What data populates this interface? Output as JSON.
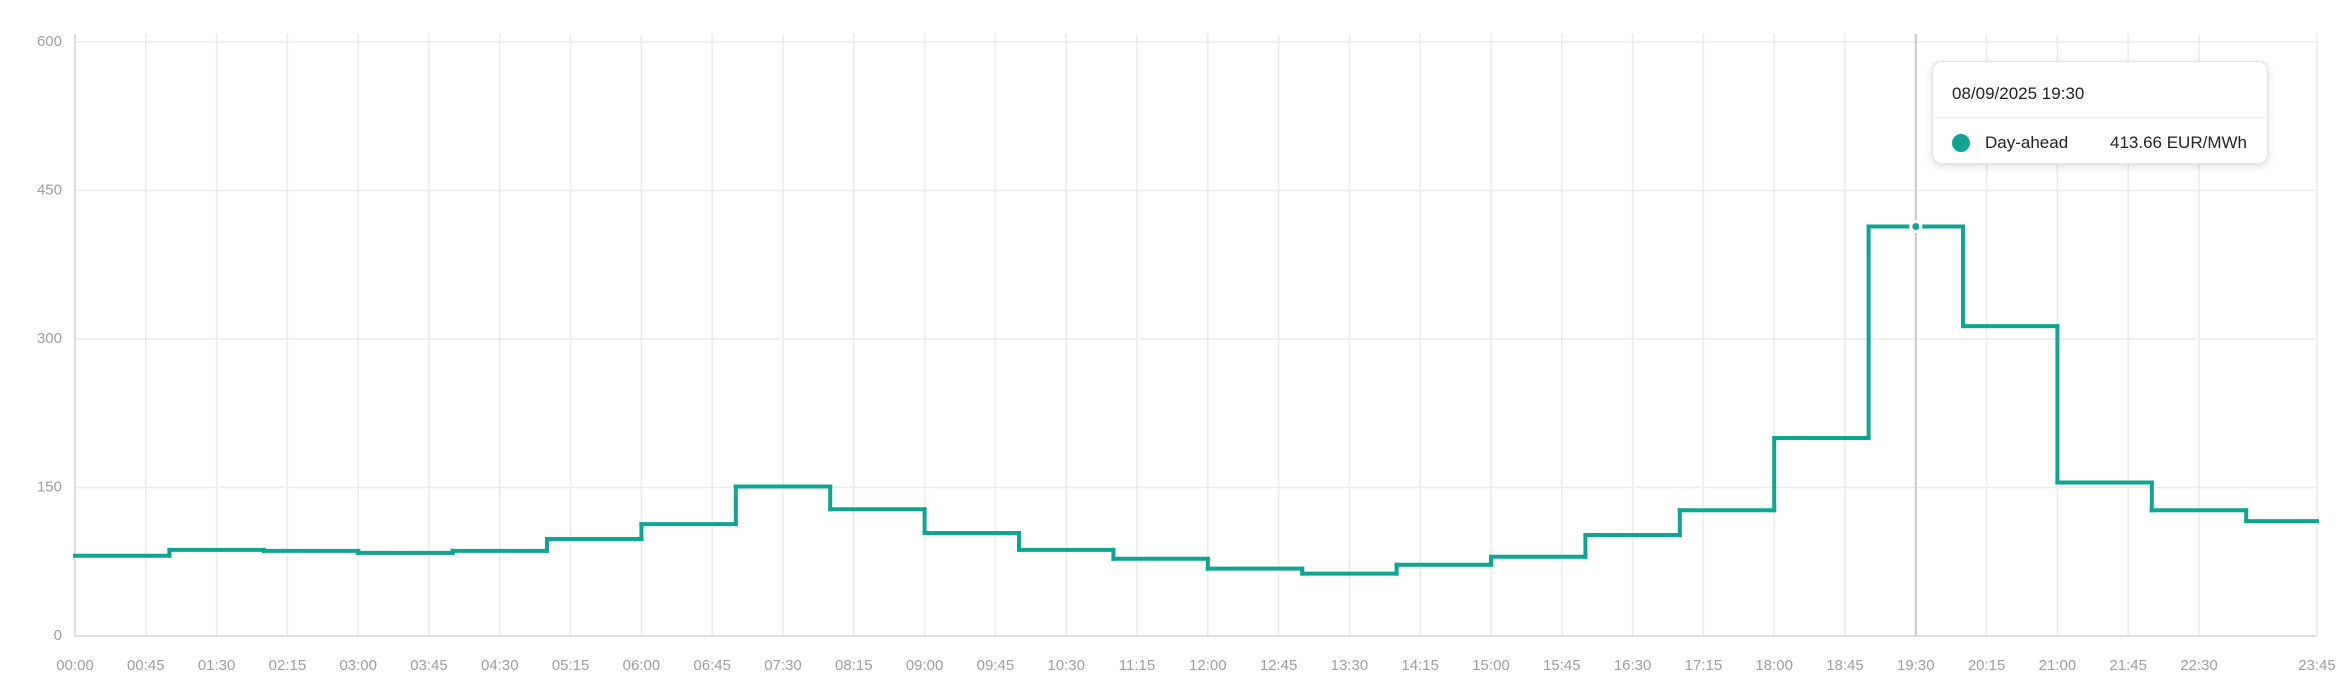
{
  "chart_data": {
    "type": "step",
    "x": [
      0,
      60,
      120,
      180,
      240,
      300,
      360,
      420,
      480,
      540,
      600,
      660,
      720,
      780,
      840,
      900,
      960,
      1020,
      1080,
      1140,
      1200,
      1260,
      1320,
      1380
    ],
    "series": [
      {
        "name": "Day-ahead",
        "color": "#0fa592",
        "values": [
          81,
          87,
          86,
          84,
          86,
          98,
          113,
          151,
          128,
          104,
          87,
          78,
          68,
          63,
          72,
          80,
          102,
          127,
          200,
          413.66,
          313,
          155,
          127,
          116
        ]
      }
    ],
    "xlim": [
      0,
      1425
    ],
    "xticks": [
      {
        "value": 0,
        "label": "00:00"
      },
      {
        "value": 45,
        "label": "00:45"
      },
      {
        "value": 90,
        "label": "01:30"
      },
      {
        "value": 135,
        "label": "02:15"
      },
      {
        "value": 180,
        "label": "03:00"
      },
      {
        "value": 225,
        "label": "03:45"
      },
      {
        "value": 270,
        "label": "04:30"
      },
      {
        "value": 315,
        "label": "05:15"
      },
      {
        "value": 360,
        "label": "06:00"
      },
      {
        "value": 405,
        "label": "06:45"
      },
      {
        "value": 450,
        "label": "07:30"
      },
      {
        "value": 495,
        "label": "08:15"
      },
      {
        "value": 540,
        "label": "09:00"
      },
      {
        "value": 585,
        "label": "09:45"
      },
      {
        "value": 630,
        "label": "10:30"
      },
      {
        "value": 675,
        "label": "11:15"
      },
      {
        "value": 720,
        "label": "12:00"
      },
      {
        "value": 765,
        "label": "12:45"
      },
      {
        "value": 810,
        "label": "13:30"
      },
      {
        "value": 855,
        "label": "14:15"
      },
      {
        "value": 900,
        "label": "15:00"
      },
      {
        "value": 945,
        "label": "15:45"
      },
      {
        "value": 990,
        "label": "16:30"
      },
      {
        "value": 1035,
        "label": "17:15"
      },
      {
        "value": 1080,
        "label": "18:00"
      },
      {
        "value": 1125,
        "label": "18:45"
      },
      {
        "value": 1170,
        "label": "19:30"
      },
      {
        "value": 1215,
        "label": "20:15"
      },
      {
        "value": 1260,
        "label": "21:00"
      },
      {
        "value": 1305,
        "label": "21:45"
      },
      {
        "value": 1350,
        "label": "22:30"
      },
      {
        "value": 1425,
        "label": "23:45"
      }
    ],
    "ylim": [
      0,
      600
    ],
    "yticks": [
      0,
      150,
      300,
      450,
      600
    ],
    "grid": true,
    "tooltip": {
      "x": 1170,
      "title": "08/09/2025 19:30",
      "label": "413.66 EUR/MWh"
    }
  }
}
